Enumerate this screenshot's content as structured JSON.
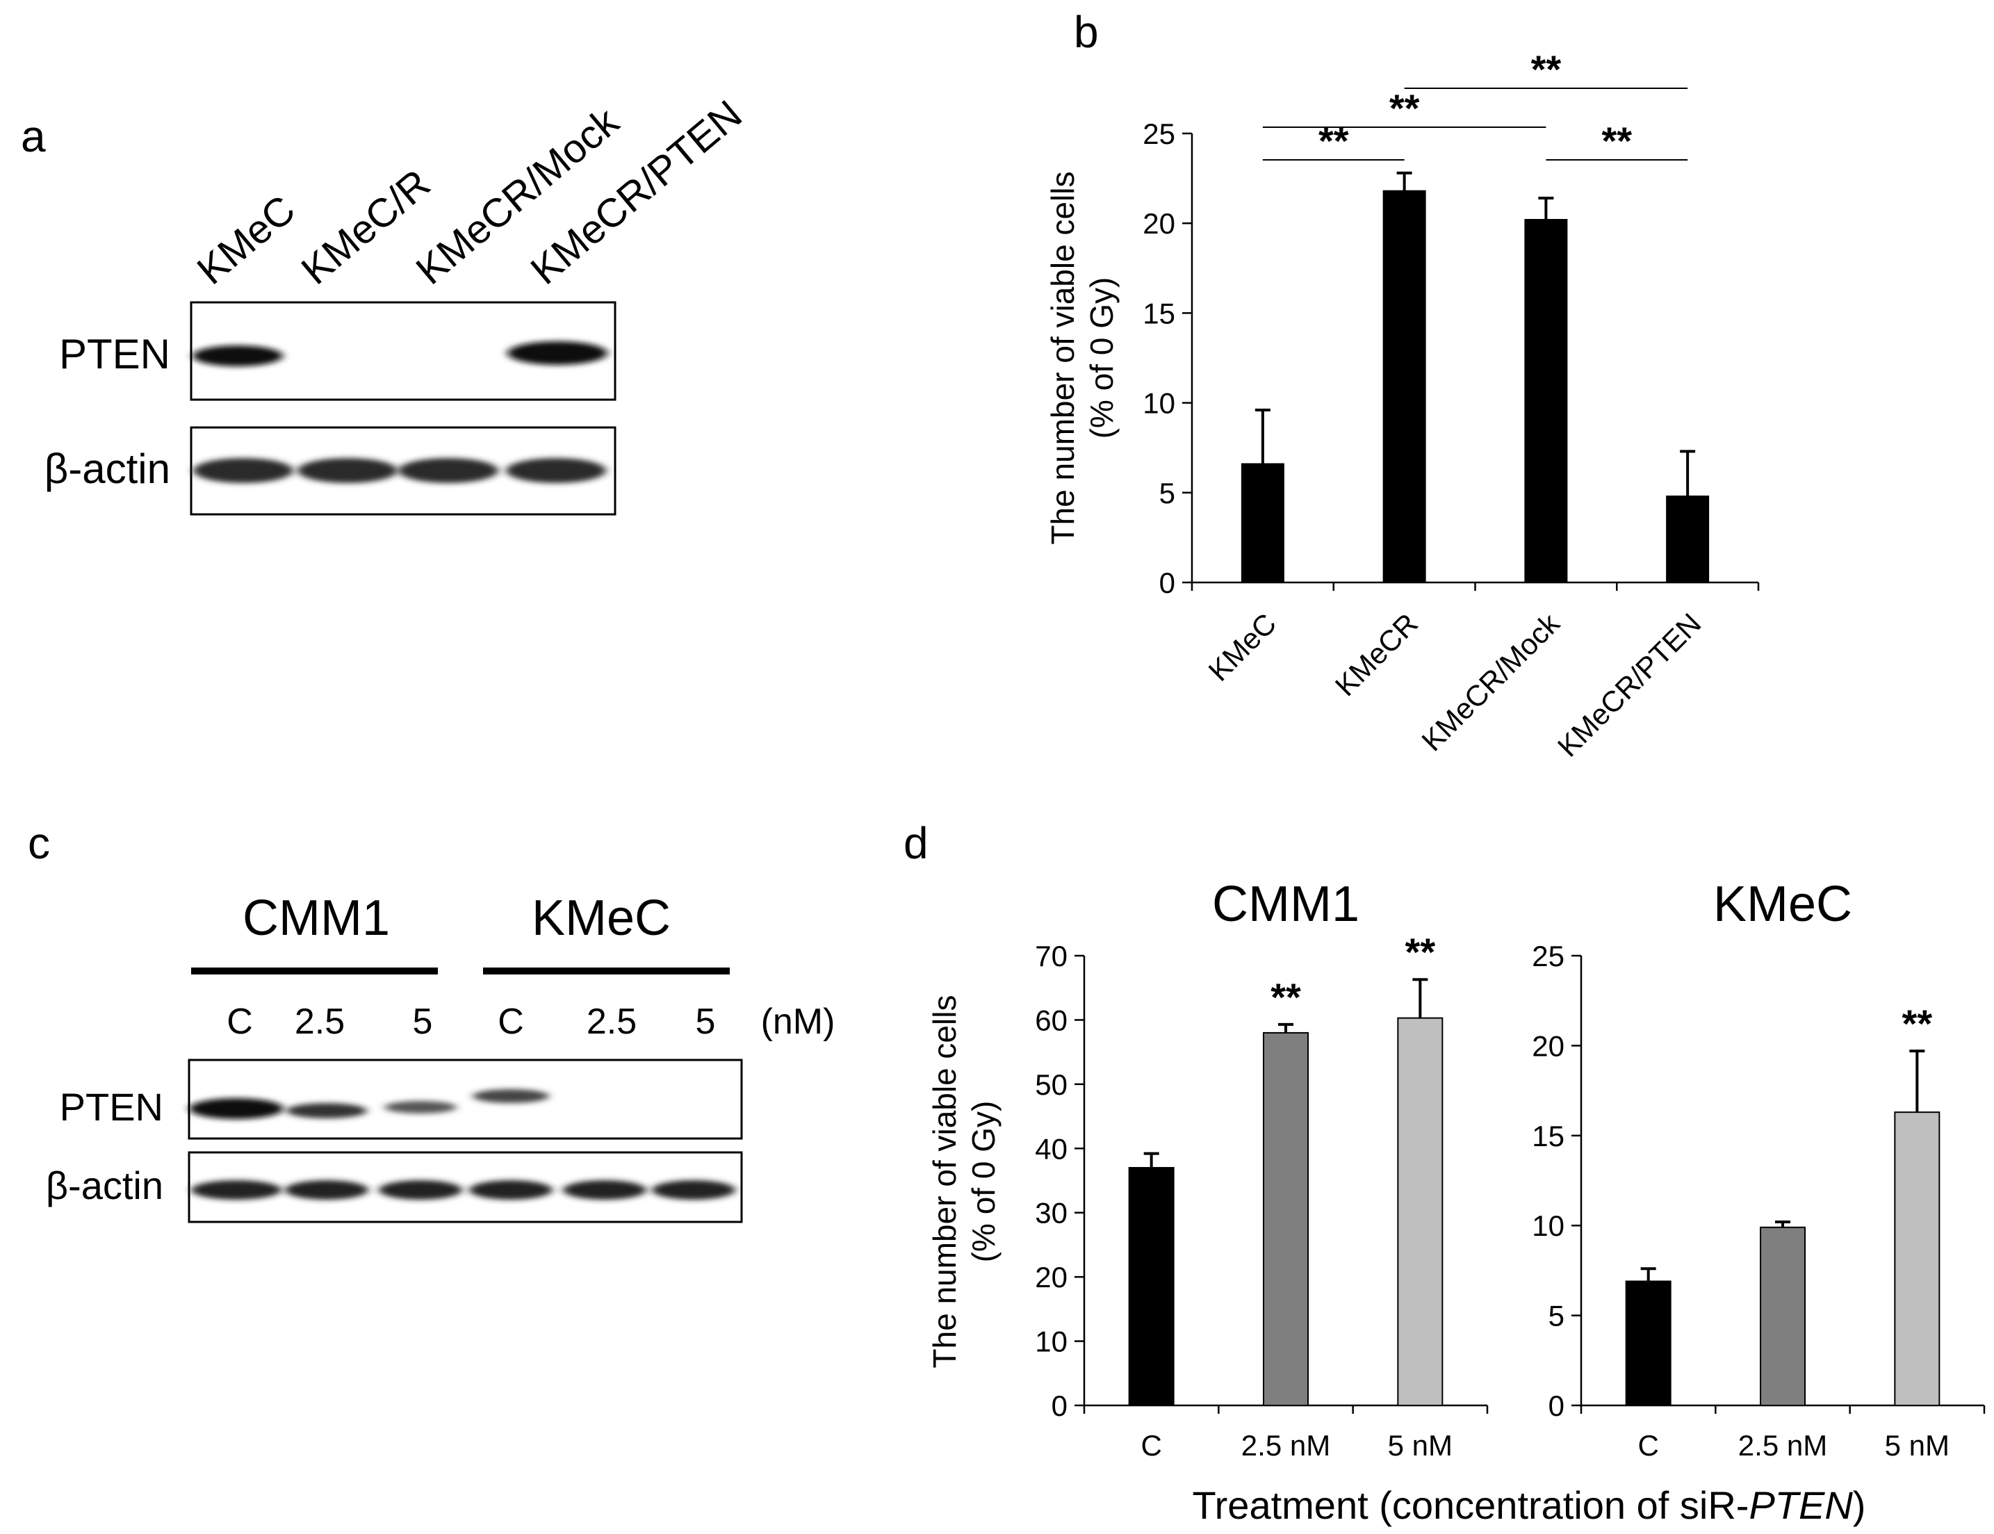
{
  "panels": {
    "a": "a",
    "b": "b",
    "c": "c",
    "d": "d"
  },
  "blot_a": {
    "lanes": [
      "KMeC",
      "KMeC/R",
      "KMeCR/Mock",
      "KMeCR/PTEN"
    ],
    "rows": [
      "PTEN",
      "β-actin"
    ]
  },
  "blot_c": {
    "groups": [
      "CMM1",
      "KMeC"
    ],
    "concentrations": [
      "C",
      "2.5",
      "5",
      "C",
      "2.5",
      "5"
    ],
    "unit": "(nM)",
    "rows": [
      "PTEN",
      "β-actin"
    ]
  },
  "colors": {
    "black_bar": "#000000",
    "dark_gray_bar": "#7f7f7f",
    "light_gray_bar": "#bfbfbf"
  },
  "d_xlabel": {
    "prefix": "Treatment (concentration of siR-",
    "gene": "PTEN",
    "suffix": ")"
  },
  "chart_data": [
    {
      "id": "b",
      "type": "bar",
      "categories": [
        "KMeC",
        "KMeCR",
        "KMeCR/Mock",
        "KMeCR/PTEN"
      ],
      "values": [
        6.6,
        21.8,
        20.2,
        4.8
      ],
      "errors": [
        3.0,
        1.0,
        1.2,
        2.5
      ],
      "colors": [
        "#000000",
        "#000000",
        "#000000",
        "#000000"
      ],
      "ylabel": [
        "The number of viable cells",
        "(% of 0 Gy)"
      ],
      "ylim": [
        0,
        25
      ],
      "yticks": [
        0,
        5,
        10,
        15,
        20,
        25
      ],
      "significance": [
        {
          "from": 0,
          "to": 1,
          "label": "**"
        },
        {
          "from": 0,
          "to": 2,
          "label": "**"
        },
        {
          "from": 1,
          "to": 3,
          "label": "**"
        },
        {
          "from": 2,
          "to": 3,
          "label": "**"
        }
      ]
    },
    {
      "id": "d1",
      "type": "bar",
      "title": "CMM1",
      "categories": [
        "C",
        "2.5 nM",
        "5 nM"
      ],
      "values": [
        37,
        58,
        60.3
      ],
      "errors": [
        2.2,
        1.3,
        6.0
      ],
      "colors": [
        "#000000",
        "#7f7f7f",
        "#bfbfbf"
      ],
      "ylabel": [
        "The number of viable cells",
        "(% of 0 Gy)"
      ],
      "ylim": [
        0,
        70
      ],
      "yticks": [
        0,
        10,
        20,
        30,
        40,
        50,
        60,
        70
      ],
      "stars": [
        "",
        "**",
        "**"
      ]
    },
    {
      "id": "d2",
      "type": "bar",
      "title": "KMeC",
      "categories": [
        "C",
        "2.5 nM",
        "5 nM"
      ],
      "values": [
        6.9,
        9.9,
        16.3
      ],
      "errors": [
        0.7,
        0.3,
        3.4
      ],
      "colors": [
        "#000000",
        "#7f7f7f",
        "#bfbfbf"
      ],
      "ylim": [
        0,
        25
      ],
      "yticks": [
        0,
        5,
        10,
        15,
        20,
        25
      ],
      "stars": [
        "",
        "",
        "**"
      ]
    }
  ]
}
